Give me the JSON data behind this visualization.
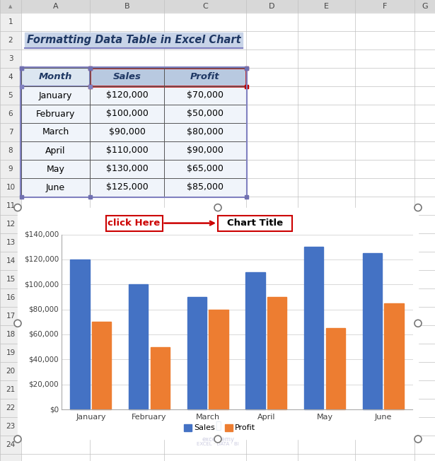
{
  "title": "Formatting Data Table in Excel Chart",
  "title_bg": "#c8d4e8",
  "title_border": "#8080c0",
  "col_header_bg": "#b8c9e0",
  "col_header_bg2": "#dce6f1",
  "months": [
    "January",
    "February",
    "March",
    "April",
    "May",
    "June"
  ],
  "sales": [
    120000,
    100000,
    90000,
    110000,
    130000,
    125000
  ],
  "profit": [
    70000,
    50000,
    80000,
    90000,
    65000,
    85000
  ],
  "col_labels": [
    "Month",
    "Sales",
    "Profit"
  ],
  "sales_color": "#4472c4",
  "profit_color": "#ed7d31",
  "grid_color": "#d9d9d9",
  "chart_title_text": "Chart Title",
  "annotation_text": "click Here",
  "y_max": 140000,
  "y_step": 20000,
  "excel_col_labels": [
    "A",
    "B",
    "C",
    "D",
    "E",
    "F",
    "G"
  ],
  "excel_row_labels": [
    "1",
    "2",
    "3",
    "4",
    "5",
    "6",
    "7",
    "8",
    "9",
    "10",
    "11",
    "12",
    "13",
    "14",
    "15",
    "16",
    "17",
    "18",
    "19",
    "20",
    "21",
    "22",
    "23",
    "24"
  ],
  "fig_bg": "#ffffff",
  "header_row_bg": "#d8d8d8",
  "row_num_bg": "#eeeeee",
  "cell_bg": "#ffffff",
  "grid_line_color": "#c0c0c0"
}
